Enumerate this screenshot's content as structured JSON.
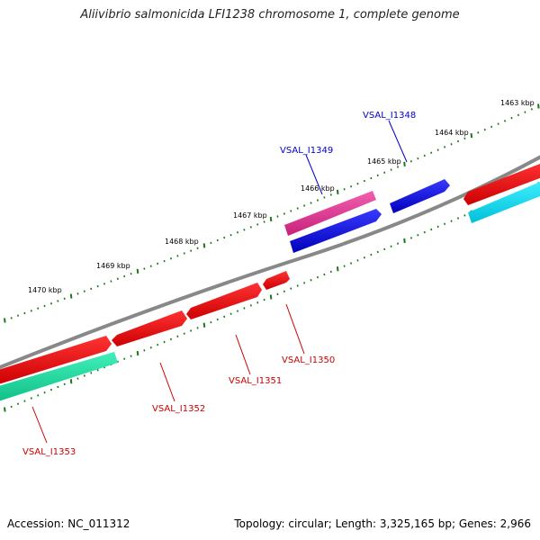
{
  "title": "Aliivibrio salmonicida LFI1238 chromosome 1, complete genome",
  "accession": "Accession: NC_011312",
  "summary": "Topology: circular; Length: 3,325,165 bp; Genes: 2,966",
  "ruler": {
    "labels": [
      "1463 kbp",
      "1464 kbp",
      "1465 kbp",
      "1466 kbp",
      "1467 kbp",
      "1468 kbp",
      "1469 kbp",
      "1470 kbp"
    ]
  },
  "genes": [
    {
      "id": "VSAL_I1348",
      "color": "#0000cc",
      "strand": "+"
    },
    {
      "id": "VSAL_I1349",
      "color": "#0000cc",
      "strand": "+"
    },
    {
      "id": "VSAL_I1350",
      "color": "#cc0000",
      "strand": "-"
    },
    {
      "id": "VSAL_I1351",
      "color": "#cc0000",
      "strand": "-"
    },
    {
      "id": "VSAL_I1352",
      "color": "#cc0000",
      "strand": "-"
    },
    {
      "id": "VSAL_I1353",
      "color": "#cc0000",
      "strand": "-"
    }
  ],
  "colors": {
    "backbone": "#888888",
    "tick": "#1a7a1a",
    "forward_cds": "#0000ee",
    "reverse_cds": "#ee0000",
    "magenta_track": "#e0409a",
    "cyan_track": "#00e0f0",
    "green_track": "#20e0a0"
  }
}
